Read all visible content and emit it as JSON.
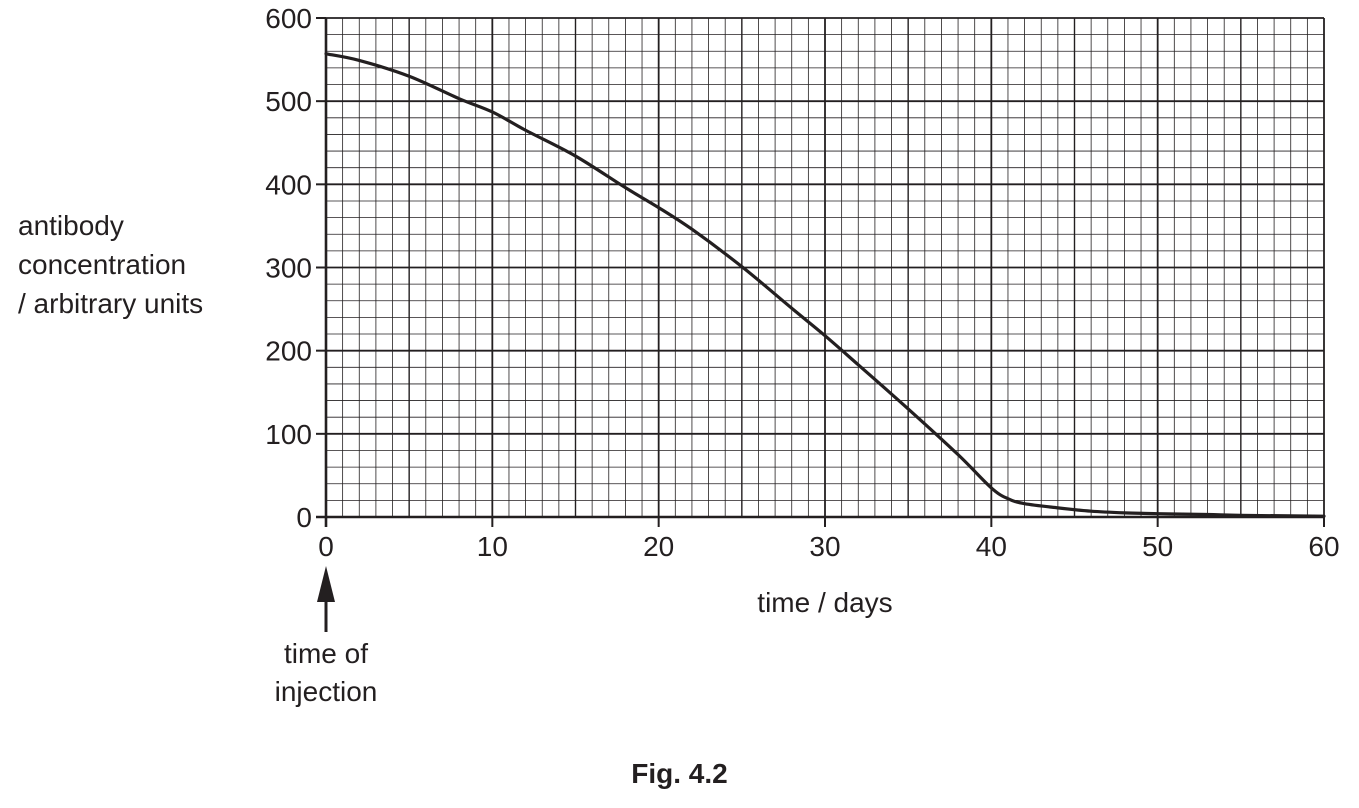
{
  "chart_data": {
    "type": "line",
    "title": "",
    "caption": "Fig. 4.2",
    "xlabel": "time / days",
    "ylabel": [
      "antibody",
      "concentration",
      "/ arbitrary units"
    ],
    "xlim": [
      0,
      60
    ],
    "ylim": [
      0,
      600
    ],
    "xticks": [
      "0",
      "10",
      "20",
      "30",
      "40",
      "50",
      "60"
    ],
    "yticks": [
      "0",
      "100",
      "200",
      "300",
      "400",
      "500",
      "600"
    ],
    "grid": true,
    "legend": "none",
    "series": [
      {
        "x": [
          0,
          2,
          5,
          8,
          10,
          12,
          15,
          18,
          20,
          22,
          25,
          28,
          30,
          32,
          35,
          38,
          40,
          41,
          42,
          44,
          46,
          48,
          50,
          53,
          55,
          60
        ],
        "y": [
          557,
          549,
          530,
          503,
          487,
          465,
          434,
          396,
          372,
          346,
          301,
          251,
          218,
          183,
          130,
          75,
          35,
          22,
          16,
          11,
          7,
          5,
          4,
          3,
          2,
          1
        ]
      }
    ],
    "annotations": [
      {
        "text": [
          "time of",
          "injection"
        ],
        "x": 0,
        "arrow": "up"
      }
    ]
  },
  "colors": {
    "ink": "#231f20",
    "grid_minor": "#231f20",
    "background": "#ffffff"
  }
}
